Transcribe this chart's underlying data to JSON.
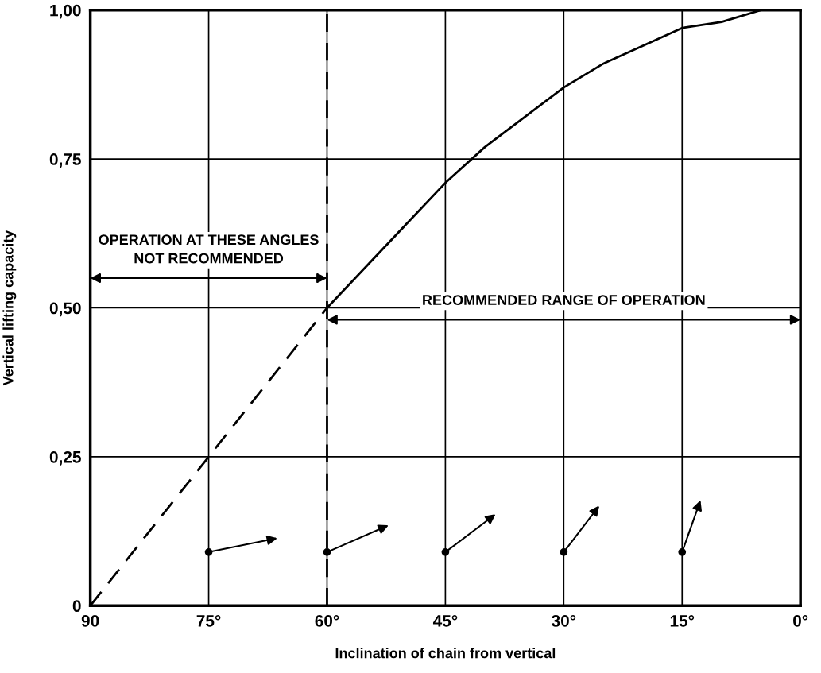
{
  "chart_data": {
    "type": "line",
    "xlabel": "Inclination of chain from vertical",
    "ylabel": "Vertical lifting capacity",
    "series": [
      {
        "color": "#000000",
        "line_style": "dashed",
        "x": [
          90,
          75,
          60
        ],
        "values": [
          0,
          0.25,
          0.5
        ]
      },
      {
        "color": "#000000",
        "line_style": "solid",
        "x": [
          60,
          55,
          50,
          45,
          40,
          35,
          30,
          25,
          20,
          15,
          10,
          5,
          0
        ],
        "values": [
          0.5,
          0.57,
          0.64,
          0.71,
          0.77,
          0.82,
          0.87,
          0.91,
          0.94,
          0.97,
          0.98,
          1.0,
          1.0
        ]
      }
    ],
    "xlim": [
      90,
      0
    ],
    "ylim": [
      0,
      1.0
    ],
    "xticks": [
      90,
      {
        "value": 75,
        "label": "75°"
      },
      {
        "value": 60,
        "label": "60°"
      },
      {
        "value": 45,
        "label": "45°"
      },
      {
        "value": 30,
        "label": "30°"
      },
      {
        "value": 15,
        "label": "15°"
      },
      {
        "value": 0,
        "label": "0°"
      }
    ],
    "yticks": [
      0,
      {
        "value": 0.25,
        "label": "0,25"
      },
      {
        "value": 0.5,
        "label": "0,50"
      },
      {
        "value": 0.75,
        "label": "0,75"
      },
      {
        "value": 1.0,
        "label": "1,00"
      }
    ],
    "ref_lines": [
      {
        "axis": "x",
        "value": 60,
        "line_style": "dashed",
        "color": "#000000"
      }
    ],
    "annotations": [
      "OPERATION AT THESE ANGLES\nNOT RECOMMENDED",
      "RECOMMENDED RANGE OF OPERATION"
    ],
    "grid": true,
    "marker": "none"
  }
}
